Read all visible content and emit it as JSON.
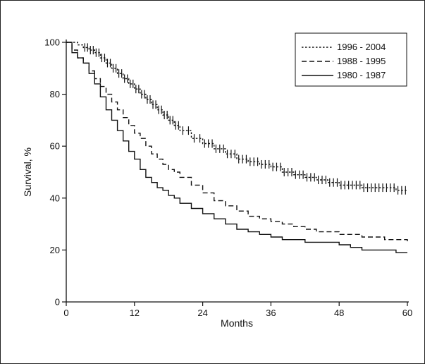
{
  "chart_data": {
    "type": "line",
    "title": "",
    "xlabel": "Months",
    "ylabel": "Survival, %",
    "xlim": [
      0,
      60
    ],
    "ylim": [
      0,
      100
    ],
    "xticks": [
      0,
      12,
      24,
      36,
      48,
      60
    ],
    "yticks": [
      0,
      20,
      40,
      60,
      80,
      100
    ],
    "grid": false,
    "legend_position": "top-right",
    "series": [
      {
        "name": "1996 - 2004",
        "style": "dotted",
        "censor_marks": true,
        "x": [
          0,
          1,
          2,
          3,
          4,
          5,
          6,
          7,
          8,
          9,
          10,
          11,
          12,
          13,
          14,
          15,
          16,
          17,
          18,
          19,
          20,
          22,
          24,
          26,
          28,
          30,
          32,
          34,
          36,
          38,
          40,
          42,
          44,
          46,
          48,
          50,
          52,
          54,
          56,
          58,
          60
        ],
        "y": [
          100,
          100,
          99,
          98,
          97,
          96,
          94,
          92,
          90,
          88,
          86,
          84,
          82,
          80,
          78,
          76,
          74,
          72,
          70,
          68,
          66,
          63,
          61,
          59,
          57,
          55,
          54,
          53,
          52,
          50,
          49,
          48,
          47,
          46,
          45,
          45,
          44,
          44,
          44,
          43,
          43
        ]
      },
      {
        "name": "1988 - 1995",
        "style": "dashed",
        "censor_marks": false,
        "x": [
          0,
          1,
          2,
          3,
          4,
          5,
          6,
          7,
          8,
          9,
          10,
          11,
          12,
          13,
          14,
          15,
          16,
          17,
          18,
          19,
          20,
          22,
          24,
          26,
          28,
          30,
          32,
          34,
          36,
          38,
          40,
          42,
          44,
          46,
          48,
          50,
          52,
          54,
          56,
          58,
          60
        ],
        "y": [
          100,
          97,
          94,
          92,
          89,
          86,
          83,
          80,
          77,
          74,
          71,
          68,
          65,
          63,
          60,
          57,
          55,
          53,
          51,
          50,
          48,
          45,
          42,
          39,
          37,
          35,
          33,
          32,
          31,
          30,
          29,
          28,
          27,
          27,
          26,
          26,
          25,
          25,
          24,
          24,
          23
        ]
      },
      {
        "name": "1980 - 1987",
        "style": "solid",
        "censor_marks": false,
        "x": [
          0,
          1,
          2,
          3,
          4,
          5,
          6,
          7,
          8,
          9,
          10,
          11,
          12,
          13,
          14,
          15,
          16,
          17,
          18,
          19,
          20,
          22,
          24,
          26,
          28,
          30,
          32,
          34,
          36,
          38,
          40,
          42,
          44,
          46,
          48,
          50,
          52,
          54,
          56,
          58,
          60
        ],
        "y": [
          100,
          96,
          94,
          92,
          88,
          84,
          79,
          74,
          70,
          66,
          62,
          58,
          55,
          51,
          48,
          46,
          44,
          43,
          41,
          40,
          38,
          36,
          34,
          32,
          30,
          28,
          27,
          26,
          25,
          24,
          24,
          23,
          23,
          23,
          22,
          21,
          20,
          20,
          20,
          19,
          19
        ]
      }
    ]
  }
}
